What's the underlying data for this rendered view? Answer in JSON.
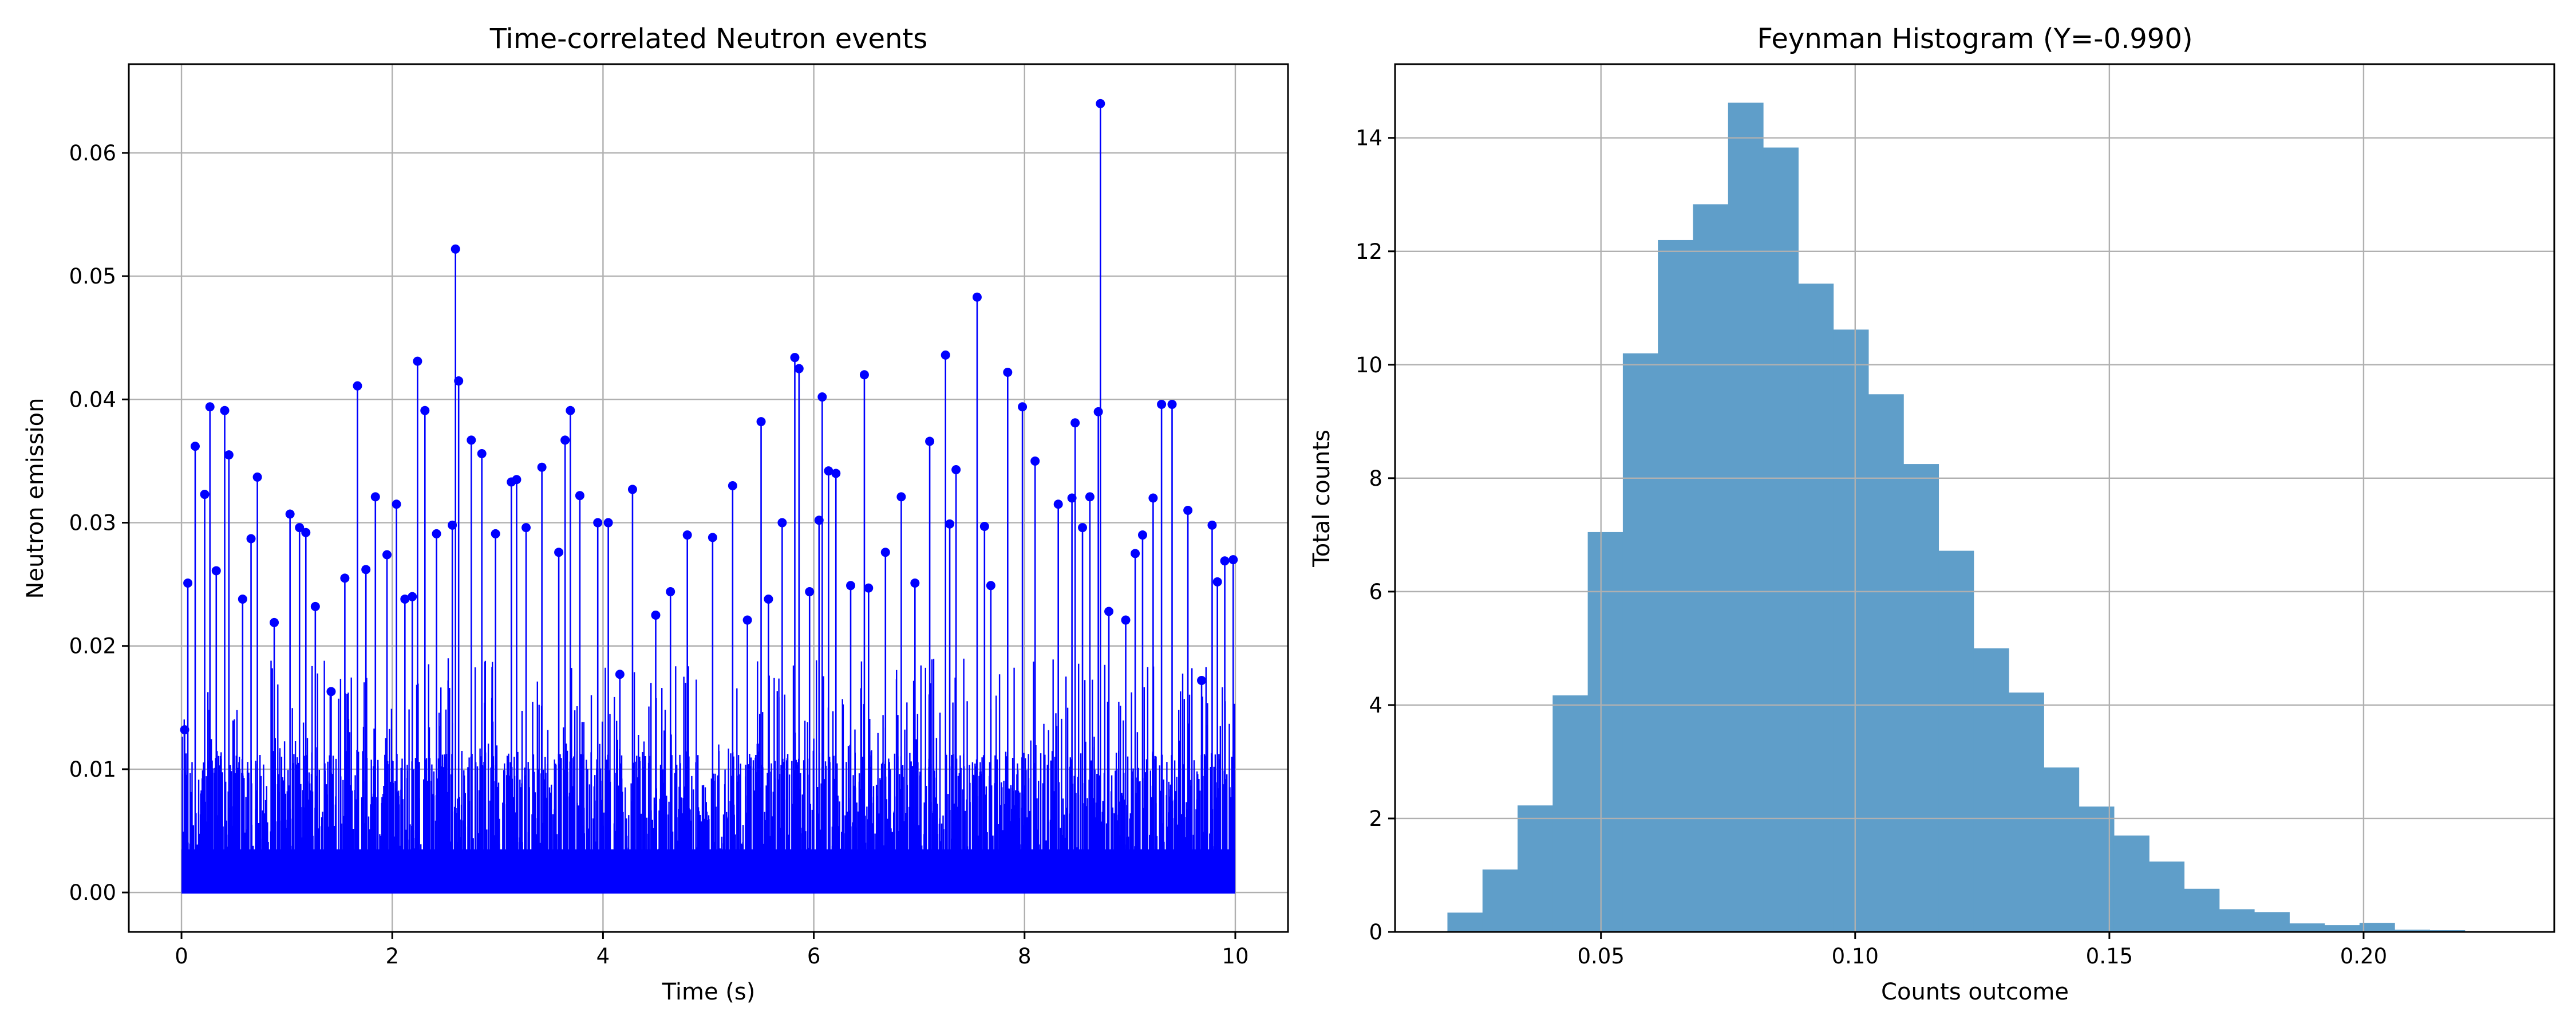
{
  "colors": {
    "stem": "#0000ff",
    "bar": "#5f9ec9",
    "grid": "#b0b0b0",
    "axis": "#000000"
  },
  "chart_data": [
    {
      "type": "scatter",
      "title": "Time-correlated Neutron events",
      "xlabel": "Time (s)",
      "ylabel": "Neutron emission",
      "xlim": [
        -0.5,
        10.5
      ],
      "ylim": [
        -0.0032,
        0.0672
      ],
      "xticks": [
        0,
        2,
        4,
        6,
        8,
        10
      ],
      "yticks": [
        0.0,
        0.01,
        0.02,
        0.03,
        0.04,
        0.05,
        0.06
      ],
      "xtick_labels": [
        "0",
        "2",
        "4",
        "6",
        "8",
        "10"
      ],
      "ytick_labels": [
        "0.00",
        "0.01",
        "0.02",
        "0.03",
        "0.04",
        "0.05",
        "0.06"
      ],
      "grid": true,
      "marker_style": "stem",
      "series": [
        {
          "x": [
            0.03,
            0.06,
            0.13,
            0.22,
            0.27,
            0.33,
            0.41,
            0.45,
            0.58,
            0.66,
            0.72,
            0.88,
            1.03,
            1.12,
            1.18,
            1.27,
            1.42,
            1.55,
            1.67,
            1.75,
            1.84,
            1.95,
            2.04,
            2.12,
            2.19,
            2.24,
            2.31,
            2.42,
            2.57,
            2.6,
            2.63,
            2.75,
            2.85,
            2.98,
            3.13,
            3.18,
            3.27,
            3.42,
            3.58,
            3.64,
            3.69,
            3.78,
            3.95,
            4.05,
            4.16,
            4.28,
            4.5,
            4.64,
            4.8,
            5.04,
            5.23,
            5.37,
            5.5,
            5.57,
            5.7,
            5.82,
            5.86,
            5.96,
            6.05,
            6.08,
            6.14,
            6.21,
            6.35,
            6.48,
            6.52,
            6.68,
            6.83,
            6.96,
            7.1,
            7.25,
            7.29,
            7.35,
            7.55,
            7.62,
            7.68,
            7.84,
            7.98,
            8.1,
            8.32,
            8.45,
            8.48,
            8.55,
            8.62,
            8.7,
            8.72,
            8.8,
            8.96,
            9.05,
            9.12,
            9.22,
            9.3,
            9.4,
            9.55,
            9.68,
            9.78,
            9.83,
            9.9,
            9.98
          ],
          "y": [
            0.0132,
            0.0251,
            0.0362,
            0.0323,
            0.0394,
            0.0261,
            0.0391,
            0.0355,
            0.0238,
            0.0287,
            0.0337,
            0.0219,
            0.0307,
            0.0296,
            0.0292,
            0.0232,
            0.0163,
            0.0255,
            0.0411,
            0.0262,
            0.0321,
            0.0274,
            0.0315,
            0.0238,
            0.024,
            0.0431,
            0.0391,
            0.0291,
            0.0298,
            0.0522,
            0.0415,
            0.0367,
            0.0356,
            0.0291,
            0.0333,
            0.0335,
            0.0296,
            0.0345,
            0.0276,
            0.0367,
            0.0391,
            0.0322,
            0.03,
            0.03,
            0.0177,
            0.0327,
            0.0225,
            0.0244,
            0.029,
            0.0288,
            0.033,
            0.0221,
            0.0382,
            0.0238,
            0.03,
            0.0434,
            0.0425,
            0.0244,
            0.0302,
            0.0402,
            0.0342,
            0.034,
            0.0249,
            0.042,
            0.0247,
            0.0276,
            0.0321,
            0.0251,
            0.0366,
            0.0436,
            0.0299,
            0.0343,
            0.0483,
            0.0297,
            0.0249,
            0.0422,
            0.0394,
            0.035,
            0.0315,
            0.032,
            0.0381,
            0.0296,
            0.0321,
            0.039,
            0.064,
            0.0228,
            0.0221,
            0.0275,
            0.029,
            0.032,
            0.0396,
            0.0396,
            0.031,
            0.0172,
            0.0298,
            0.0252,
            0.0269,
            0.027
          ]
        }
      ]
    },
    {
      "type": "bar",
      "title": "Feynman Histogram (Y=-0.990)",
      "xlabel": "Counts outcome",
      "ylabel": "Total counts",
      "xlim": [
        0.0095,
        0.2375
      ],
      "ylim": [
        0,
        15.3
      ],
      "xticks": [
        0.05,
        0.1,
        0.15,
        0.2
      ],
      "yticks": [
        0,
        2,
        4,
        6,
        8,
        10,
        12,
        14
      ],
      "xtick_labels": [
        "0.05",
        "0.10",
        "0.15",
        "0.20"
      ],
      "ytick_labels": [
        "0",
        "2",
        "4",
        "6",
        "8",
        "10",
        "12",
        "14"
      ],
      "grid": true,
      "bin_edges": [
        0.0198,
        0.0267,
        0.0336,
        0.0405,
        0.0474,
        0.0543,
        0.0612,
        0.0681,
        0.075,
        0.0819,
        0.0888,
        0.0957,
        0.1026,
        0.1095,
        0.1164,
        0.1233,
        0.1302,
        0.1371,
        0.144,
        0.1509,
        0.1578,
        0.1647,
        0.1716,
        0.1785,
        0.1854,
        0.1923,
        0.1992,
        0.2061,
        0.213,
        0.2199,
        0.2268
      ],
      "values": [
        0.34,
        1.1,
        2.23,
        4.17,
        7.05,
        10.2,
        12.2,
        12.83,
        14.62,
        13.83,
        11.43,
        10.62,
        9.48,
        8.25,
        6.72,
        5.0,
        4.22,
        2.9,
        2.21,
        1.7,
        1.24,
        0.76,
        0.4,
        0.35,
        0.15,
        0.12,
        0.16,
        0.04,
        0.03,
        0.01
      ]
    }
  ]
}
